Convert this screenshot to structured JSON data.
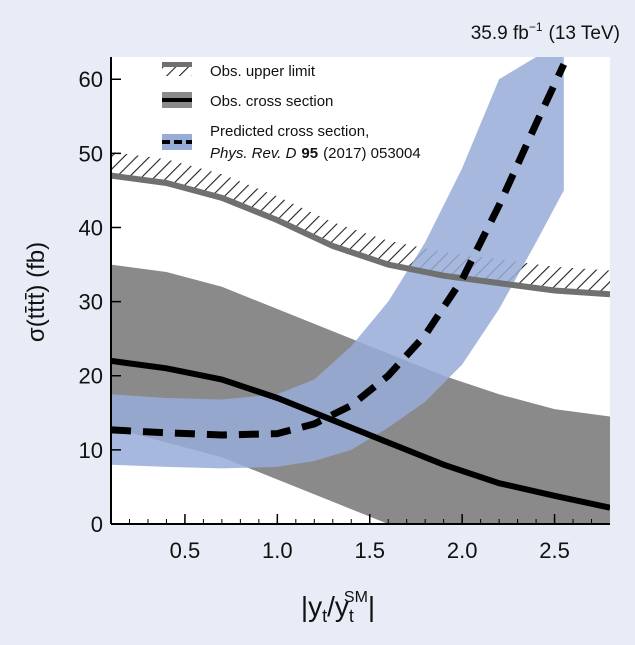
{
  "chart_data": {
    "type": "line",
    "top_label": {
      "lumi": "35.9 fb",
      "lumi_sup": "−1",
      "energy": "(13 TeV)"
    },
    "xlabel": {
      "pre": "|y",
      "sub1": "t",
      "mid": "/y",
      "sub2": "t",
      "sup": "SM",
      "post": "|"
    },
    "ylabel": {
      "text": "σ(t̅t̅t̅t̅) (fb)",
      "display": "σ(tt̄tt̄) (fb)"
    },
    "xlim": [
      0.1,
      2.8
    ],
    "ylim": [
      0,
      63
    ],
    "xticks": [
      "0.5",
      "1.0",
      "1.5",
      "2.0",
      "2.5"
    ],
    "yticks": [
      "0",
      "10",
      "20",
      "30",
      "40",
      "50",
      "60"
    ],
    "legend": [
      {
        "label": "Obs. upper limit",
        "style": "hatched-band"
      },
      {
        "label": "Obs. cross section",
        "style": "black-line-grey-band"
      },
      {
        "label": "Predicted cross section,",
        "style": "dashed-blue-band"
      },
      {
        "label_italic": "Phys. Rev. D",
        "label_bold": "95",
        "label_rest": "(2017) 053004",
        "style": "continuation"
      }
    ],
    "series": [
      {
        "name": "Obs. upper limit",
        "x": [
          0.1,
          0.4,
          0.7,
          1.0,
          1.3,
          1.6,
          1.9,
          2.2,
          2.5,
          2.8
        ],
        "y": [
          47,
          46,
          44,
          41,
          37.5,
          35,
          33.5,
          32.5,
          31.5,
          31
        ]
      },
      {
        "name": "Obs. cross section",
        "x": [
          0.1,
          0.4,
          0.7,
          1.0,
          1.3,
          1.6,
          1.9,
          2.2,
          2.5,
          2.8
        ],
        "y": [
          22,
          21,
          19.5,
          17,
          14,
          11,
          8,
          5.5,
          3.8,
          2.2
        ],
        "band_upper": [
          35,
          34,
          32,
          29,
          26,
          23,
          20,
          17.5,
          15.5,
          14.5
        ],
        "band_lower": [
          13,
          11,
          9,
          6,
          3,
          0,
          0,
          0,
          0,
          0
        ]
      },
      {
        "name": "Predicted cross section",
        "x": [
          0.1,
          0.4,
          0.7,
          1.0,
          1.2,
          1.4,
          1.6,
          1.8,
          2.0,
          2.2,
          2.4,
          2.55
        ],
        "y": [
          12.7,
          12.3,
          12,
          12.2,
          13.5,
          16,
          20,
          25.5,
          33,
          43,
          54,
          62
        ],
        "band_upper": [
          17.5,
          17,
          16.8,
          17.5,
          19.5,
          24,
          30,
          38,
          48,
          60,
          63,
          63
        ],
        "band_lower": [
          8,
          7.7,
          7.5,
          7.7,
          8.5,
          10,
          13,
          16.5,
          21.5,
          29,
          38,
          45
        ]
      }
    ],
    "colors": {
      "grey_band": "#8a8a8a",
      "upper_limit_line": "#707070",
      "blue_band": "#98acd8",
      "black": "#000000",
      "page_bg": "#e8ecf6",
      "plot_bg": "#ffffff"
    },
    "grid": false,
    "legend_position": "top-left"
  }
}
